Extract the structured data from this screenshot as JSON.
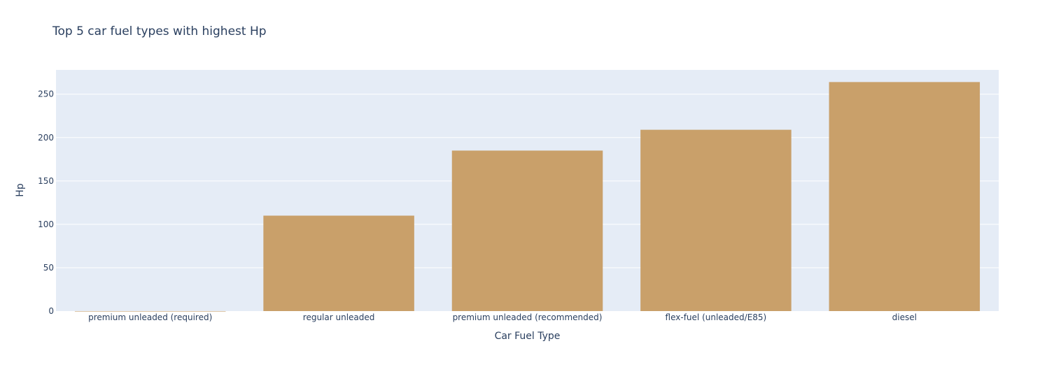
{
  "chart_data": {
    "type": "bar",
    "title": "Top 5 car fuel types with highest Hp",
    "xlabel": "Car Fuel Type",
    "ylabel": "Hp",
    "categories": [
      "premium unleaded (required)",
      "regular unleaded",
      "premium unleaded (recommended)",
      "flex-fuel (unleaded/E85)",
      "diesel"
    ],
    "values": [
      0,
      110,
      185,
      209,
      264
    ],
    "ylim": [
      0,
      278
    ],
    "yticks": [
      0,
      50,
      100,
      150,
      200,
      250
    ],
    "grid": true,
    "bar_color": "#c9a06a",
    "plot_bgcolor": "#e5ecf6",
    "grid_color": "#ffffff"
  }
}
